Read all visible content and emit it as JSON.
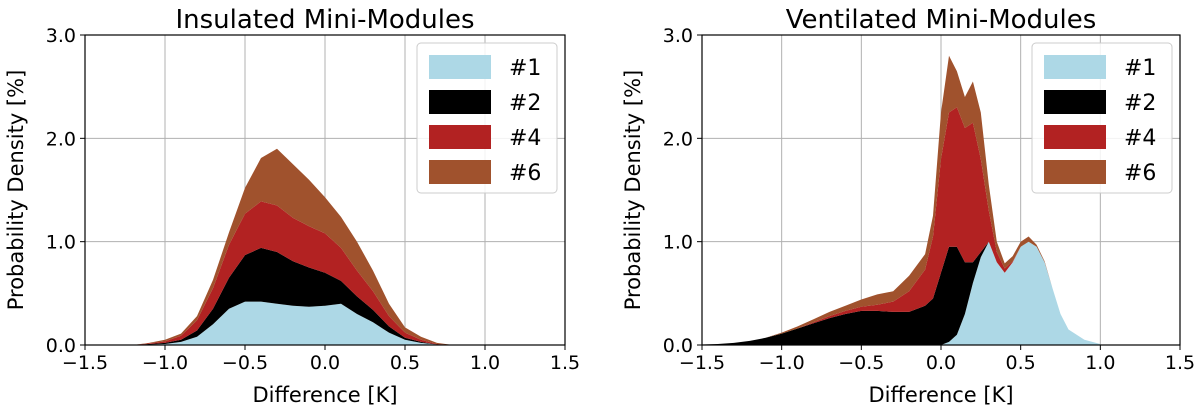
{
  "figure": {
    "panels": 2
  },
  "chart_data": [
    {
      "type": "area",
      "title": "Insulated Mini-Modules",
      "xlabel": "Difference [K]",
      "ylabel": "Probability Density [%]",
      "xlim": [
        -1.5,
        1.5
      ],
      "ylim": [
        0,
        3.0
      ],
      "xticks": [
        "−1.5",
        "−1.0",
        "−0.5",
        "0.0",
        "0.5",
        "1.0",
        "1.5"
      ],
      "xtick_values": [
        -1.5,
        -1.0,
        -0.5,
        0.0,
        0.5,
        1.0,
        1.5
      ],
      "yticks": [
        "0.0",
        "1.0",
        "2.0",
        "3.0"
      ],
      "ytick_values": [
        0,
        1,
        2,
        3
      ],
      "grid": true,
      "stacked": true,
      "legend_position": "top-right",
      "x": [
        -1.2,
        -1.1,
        -1.0,
        -0.9,
        -0.8,
        -0.7,
        -0.6,
        -0.5,
        -0.4,
        -0.3,
        -0.2,
        -0.1,
        0.0,
        0.1,
        0.2,
        0.3,
        0.4,
        0.5,
        0.6,
        0.7,
        0.8,
        0.9
      ],
      "series": [
        {
          "name": "#1",
          "color": "#add8e6",
          "values": [
            0,
            0.005,
            0.01,
            0.03,
            0.08,
            0.2,
            0.35,
            0.42,
            0.42,
            0.4,
            0.38,
            0.37,
            0.38,
            0.4,
            0.3,
            0.22,
            0.12,
            0.05,
            0.02,
            0.005,
            0,
            0
          ]
        },
        {
          "name": "#2",
          "color": "#000000",
          "values": [
            0,
            0.005,
            0.01,
            0.02,
            0.06,
            0.15,
            0.3,
            0.45,
            0.52,
            0.5,
            0.43,
            0.38,
            0.32,
            0.22,
            0.17,
            0.12,
            0.06,
            0.02,
            0.01,
            0,
            0,
            0
          ]
        },
        {
          "name": "#4",
          "color": "#b22222",
          "values": [
            0,
            0.005,
            0.015,
            0.04,
            0.1,
            0.2,
            0.32,
            0.4,
            0.45,
            0.45,
            0.42,
            0.4,
            0.38,
            0.32,
            0.25,
            0.18,
            0.1,
            0.05,
            0.02,
            0.005,
            0,
            0
          ]
        },
        {
          "name": "#6",
          "color": "#a0522d",
          "values": [
            0,
            0.005,
            0.015,
            0.02,
            0.04,
            0.08,
            0.12,
            0.25,
            0.42,
            0.55,
            0.52,
            0.45,
            0.35,
            0.3,
            0.28,
            0.2,
            0.12,
            0.05,
            0.03,
            0.01,
            0,
            0
          ]
        }
      ]
    },
    {
      "type": "area",
      "title": "Ventilated Mini-Modules",
      "xlabel": "Difference [K]",
      "ylabel": "Probability Density [%]",
      "xlim": [
        -1.5,
        1.5
      ],
      "ylim": [
        0,
        3.0
      ],
      "xticks": [
        "−1.5",
        "−1.0",
        "−0.5",
        "0.0",
        "0.5",
        "1.0",
        "1.5"
      ],
      "xtick_values": [
        -1.5,
        -1.0,
        -0.5,
        0.0,
        0.5,
        1.0,
        1.5
      ],
      "yticks": [
        "0.0",
        "1.0",
        "2.0",
        "3.0"
      ],
      "ytick_values": [
        0,
        1,
        2,
        3
      ],
      "grid": true,
      "stacked": true,
      "legend_position": "top-right",
      "x": [
        -1.5,
        -1.4,
        -1.3,
        -1.2,
        -1.1,
        -1.0,
        -0.9,
        -0.8,
        -0.7,
        -0.6,
        -0.5,
        -0.4,
        -0.3,
        -0.2,
        -0.1,
        -0.05,
        0.0,
        0.05,
        0.1,
        0.15,
        0.2,
        0.25,
        0.3,
        0.35,
        0.4,
        0.45,
        0.5,
        0.55,
        0.6,
        0.65,
        0.7,
        0.75,
        0.8,
        0.9,
        1.0
      ],
      "series": [
        {
          "name": "#1",
          "color": "#add8e6",
          "values": [
            0,
            0,
            0,
            0,
            0,
            0,
            0,
            0,
            0,
            0,
            0,
            0,
            0,
            0,
            0,
            0,
            0,
            0.03,
            0.1,
            0.3,
            0.6,
            0.85,
            1.0,
            0.8,
            0.7,
            0.8,
            0.95,
            1.0,
            0.95,
            0.8,
            0.55,
            0.3,
            0.15,
            0.05,
            0.01
          ]
        },
        {
          "name": "#2",
          "color": "#000000",
          "values": [
            0.005,
            0.01,
            0.02,
            0.04,
            0.07,
            0.11,
            0.16,
            0.21,
            0.26,
            0.3,
            0.33,
            0.33,
            0.32,
            0.32,
            0.38,
            0.45,
            0.7,
            0.92,
            0.85,
            0.5,
            0.2,
            0.05,
            0,
            0,
            0,
            0,
            0,
            0,
            0,
            0,
            0,
            0,
            0,
            0,
            0
          ]
        },
        {
          "name": "#4",
          "color": "#b22222",
          "values": [
            0,
            0,
            0,
            0,
            0,
            0,
            0,
            0.01,
            0.02,
            0.03,
            0.04,
            0.06,
            0.1,
            0.2,
            0.35,
            0.6,
            1.1,
            1.3,
            1.35,
            1.3,
            1.35,
            0.9,
            0.3,
            0.1,
            0.04,
            0.01,
            0,
            0,
            0,
            0,
            0,
            0,
            0,
            0,
            0
          ]
        },
        {
          "name": "#6",
          "color": "#a0522d",
          "values": [
            0,
            0,
            0,
            0,
            0,
            0.01,
            0.02,
            0.03,
            0.04,
            0.05,
            0.07,
            0.1,
            0.1,
            0.15,
            0.15,
            0.2,
            0.45,
            0.55,
            0.35,
            0.3,
            0.4,
            0.45,
            0.25,
            0.1,
            0.05,
            0.05,
            0.05,
            0.05,
            0.02,
            0.01,
            0,
            0,
            0,
            0,
            0
          ]
        }
      ]
    }
  ]
}
